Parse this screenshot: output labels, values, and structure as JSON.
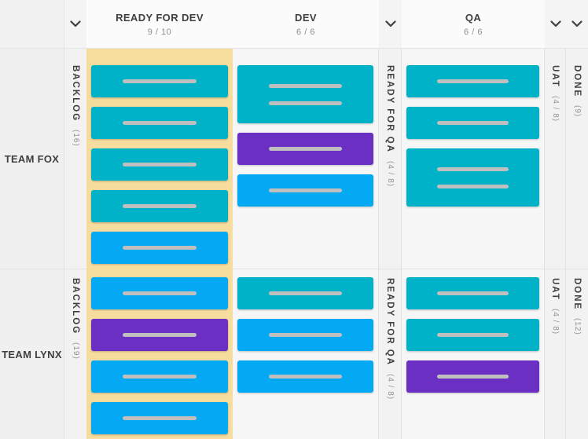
{
  "colors": {
    "teal": "#00b2c7",
    "blue": "#04a9f4",
    "purple": "#6b2fc3",
    "highlight": "#f6dc9d",
    "card_line": "#bfbfbf"
  },
  "icons": {
    "collapse_toggle": "chevron-down"
  },
  "header": {
    "ready_for_dev": {
      "label": "READY FOR DEV",
      "count": "9 / 10"
    },
    "dev": {
      "label": "DEV",
      "count": "6 / 6"
    },
    "qa": {
      "label": "QA",
      "count": "6 / 6"
    }
  },
  "swimlanes": [
    {
      "title": "TEAM FOX",
      "collapsed": {
        "backlog": {
          "label": "BACKLOG",
          "count": "(16)"
        },
        "ready_for_qa": {
          "label": "READY FOR QA",
          "count": "(4 / 8)"
        },
        "uat": {
          "label": "UAT",
          "count": "(4 / 8)"
        },
        "done": {
          "label": "DONE",
          "count": "(9)"
        }
      },
      "cards": {
        "ready_for_dev": [
          {
            "color": "teal",
            "lines": 1
          },
          {
            "color": "teal",
            "lines": 1
          },
          {
            "color": "teal",
            "lines": 1
          },
          {
            "color": "teal",
            "lines": 1
          },
          {
            "color": "blue",
            "lines": 1
          }
        ],
        "dev": [
          {
            "color": "teal",
            "lines": 2
          },
          {
            "color": "purple",
            "lines": 1
          },
          {
            "color": "blue",
            "lines": 1
          }
        ],
        "qa": [
          {
            "color": "teal",
            "lines": 1
          },
          {
            "color": "teal",
            "lines": 1
          },
          {
            "color": "teal",
            "lines": 2
          }
        ]
      }
    },
    {
      "title": "TEAM LYNX",
      "collapsed": {
        "backlog": {
          "label": "BACKLOG",
          "count": "(19)"
        },
        "ready_for_qa": {
          "label": "READY FOR QA",
          "count": "(4 / 8)"
        },
        "uat": {
          "label": "UAT",
          "count": "(4 / 8)"
        },
        "done": {
          "label": "DONE",
          "count": "(12)"
        }
      },
      "cards": {
        "ready_for_dev": [
          {
            "color": "blue",
            "lines": 1
          },
          {
            "color": "purple",
            "lines": 1
          },
          {
            "color": "blue",
            "lines": 1
          },
          {
            "color": "blue",
            "lines": 1
          }
        ],
        "dev": [
          {
            "color": "teal",
            "lines": 1
          },
          {
            "color": "blue",
            "lines": 1
          },
          {
            "color": "blue",
            "lines": 1
          }
        ],
        "qa": [
          {
            "color": "teal",
            "lines": 1
          },
          {
            "color": "teal",
            "lines": 1
          },
          {
            "color": "purple",
            "lines": 1
          }
        ]
      }
    }
  ]
}
